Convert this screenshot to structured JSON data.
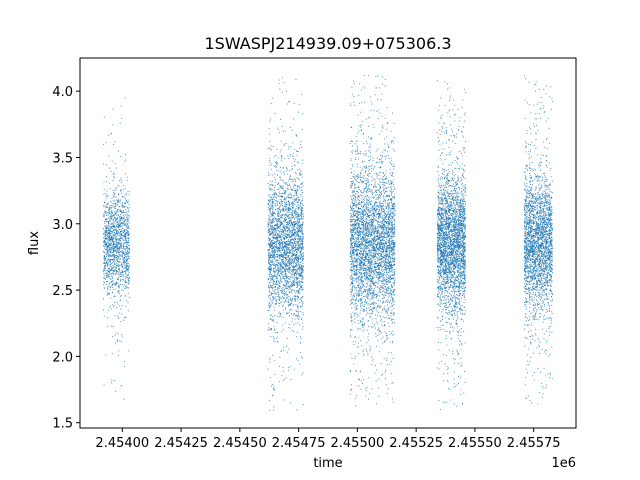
{
  "chart_data": {
    "type": "scatter",
    "title": "1SWASPJ214939.09+075306.3",
    "xlabel": "time",
    "ylabel": "flux",
    "x_offset_label": "1e6",
    "xlim": [
      2.45382,
      2.45593
    ],
    "ylim": [
      1.46,
      4.25
    ],
    "x_ticks": [
      2.454,
      2.45425,
      2.4545,
      2.45475,
      2.455,
      2.45525,
      2.4555,
      2.45575
    ],
    "x_tick_labels": [
      "2.45400",
      "2.45425",
      "2.45450",
      "2.45475",
      "2.45500",
      "2.45525",
      "2.45550",
      "2.45575"
    ],
    "y_ticks": [
      1.5,
      2.0,
      2.5,
      3.0,
      3.5,
      4.0
    ],
    "y_tick_labels": [
      "1.5",
      "2.0",
      "2.5",
      "3.0",
      "3.5",
      "4.0"
    ],
    "grid": false,
    "point_color": "#1f77b4",
    "series": [
      {
        "seasons": [
          {
            "x_start": 2.45392,
            "x_end": 2.45403,
            "center": 2.85,
            "sd": 0.18,
            "ymin": 1.62,
            "ymax": 4.06,
            "count": 1500
          },
          {
            "x_start": 2.45462,
            "x_end": 2.45477,
            "center": 2.85,
            "sd": 0.24,
            "ymin": 1.58,
            "ymax": 4.12,
            "count": 2800
          },
          {
            "x_start": 2.45497,
            "x_end": 2.45516,
            "center": 2.85,
            "sd": 0.27,
            "ymin": 1.62,
            "ymax": 4.12,
            "count": 3800
          },
          {
            "x_start": 2.45534,
            "x_end": 2.45546,
            "center": 2.85,
            "sd": 0.24,
            "ymin": 1.58,
            "ymax": 4.08,
            "count": 3000
          },
          {
            "x_start": 2.45571,
            "x_end": 2.45583,
            "center": 2.85,
            "sd": 0.24,
            "ymin": 1.6,
            "ymax": 4.12,
            "count": 2600
          }
        ]
      }
    ]
  }
}
